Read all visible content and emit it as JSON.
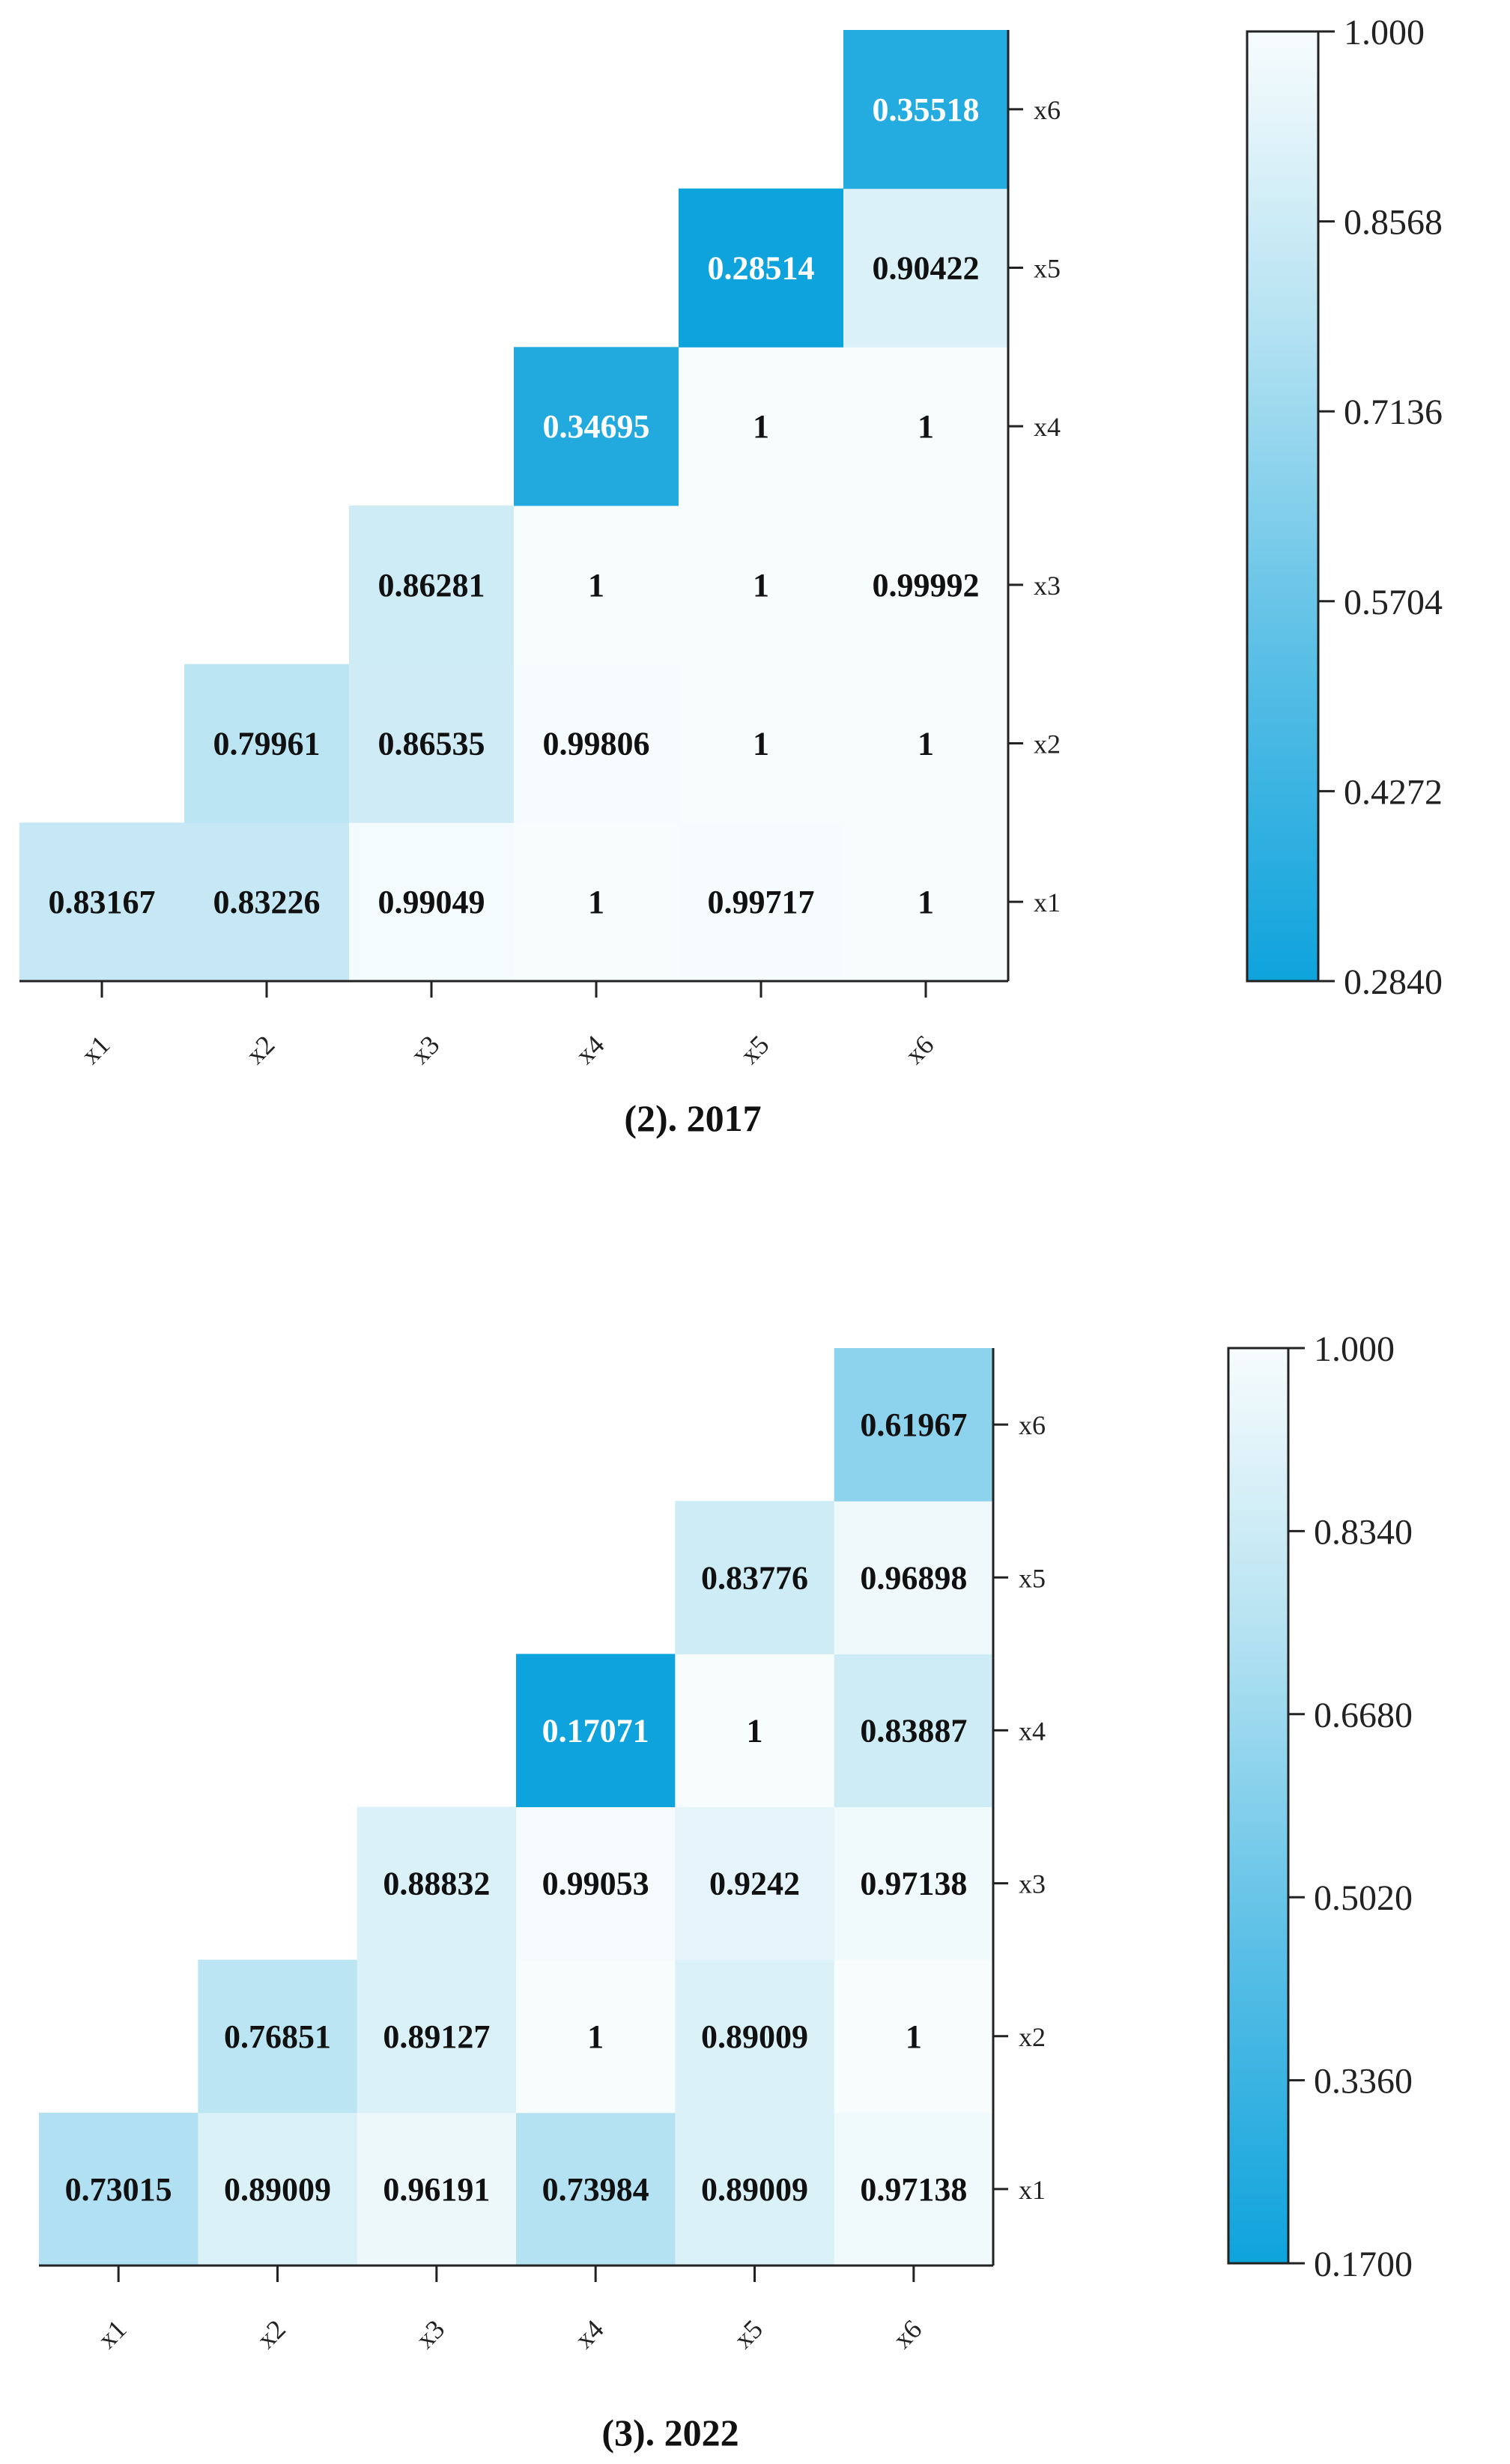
{
  "chart_data": [
    {
      "type": "heatmap",
      "title": "(2). 2017",
      "x_labels": [
        "x1",
        "x2",
        "x3",
        "x4",
        "x5",
        "x6"
      ],
      "y_labels": [
        "x1",
        "x2",
        "x3",
        "x4",
        "x5",
        "x6"
      ],
      "layout": "upper-triangle",
      "cells": [
        {
          "x": "x1",
          "y": "x1",
          "label": "0.83167",
          "value": 0.83167
        },
        {
          "x": "x2",
          "y": "x1",
          "label": "0.83226",
          "value": 0.83226
        },
        {
          "x": "x3",
          "y": "x1",
          "label": "0.99049",
          "value": 0.99049
        },
        {
          "x": "x4",
          "y": "x1",
          "label": "1",
          "value": 1
        },
        {
          "x": "x5",
          "y": "x1",
          "label": "0.99717",
          "value": 0.99717
        },
        {
          "x": "x6",
          "y": "x1",
          "label": "1",
          "value": 1
        },
        {
          "x": "x2",
          "y": "x2",
          "label": "0.79961",
          "value": 0.79961
        },
        {
          "x": "x3",
          "y": "x2",
          "label": "0.86535",
          "value": 0.86535
        },
        {
          "x": "x4",
          "y": "x2",
          "label": "0.99806",
          "value": 0.99806
        },
        {
          "x": "x5",
          "y": "x2",
          "label": "1",
          "value": 1
        },
        {
          "x": "x6",
          "y": "x2",
          "label": "1",
          "value": 1
        },
        {
          "x": "x3",
          "y": "x3",
          "label": "0.86281",
          "value": 0.86281
        },
        {
          "x": "x4",
          "y": "x3",
          "label": "1",
          "value": 1
        },
        {
          "x": "x5",
          "y": "x3",
          "label": "1",
          "value": 1
        },
        {
          "x": "x6",
          "y": "x3",
          "label": "0.99992",
          "value": 0.99992
        },
        {
          "x": "x4",
          "y": "x4",
          "label": "0.34695",
          "value": 0.34695
        },
        {
          "x": "x5",
          "y": "x4",
          "label": "1",
          "value": 1
        },
        {
          "x": "x6",
          "y": "x4",
          "label": "1",
          "value": 1
        },
        {
          "x": "x5",
          "y": "x5",
          "label": "0.28514",
          "value": 0.28514
        },
        {
          "x": "x6",
          "y": "x5",
          "label": "0.90422",
          "value": 0.90422
        },
        {
          "x": "x6",
          "y": "x6",
          "label": "0.35518",
          "value": 0.35518
        }
      ],
      "colorbar": {
        "min": 0.284,
        "max": 1.0,
        "ticks": [
          "1.000",
          "0.8568",
          "0.7136",
          "0.5704",
          "0.4272",
          "0.2840"
        ],
        "low_color": "#0ea3dc",
        "high_color": "#f7fcfd"
      }
    },
    {
      "type": "heatmap",
      "title": "(3). 2022",
      "x_labels": [
        "x1",
        "x2",
        "x3",
        "x4",
        "x5",
        "x6"
      ],
      "y_labels": [
        "x1",
        "x2",
        "x3",
        "x4",
        "x5",
        "x6"
      ],
      "layout": "upper-triangle",
      "cells": [
        {
          "x": "x1",
          "y": "x1",
          "label": "0.73015",
          "value": 0.73015
        },
        {
          "x": "x2",
          "y": "x1",
          "label": "0.89009",
          "value": 0.89009
        },
        {
          "x": "x3",
          "y": "x1",
          "label": "0.96191",
          "value": 0.96191
        },
        {
          "x": "x4",
          "y": "x1",
          "label": "0.73984",
          "value": 0.73984
        },
        {
          "x": "x5",
          "y": "x1",
          "label": "0.89009",
          "value": 0.89009
        },
        {
          "x": "x6",
          "y": "x1",
          "label": "0.97138",
          "value": 0.97138
        },
        {
          "x": "x2",
          "y": "x2",
          "label": "0.76851",
          "value": 0.76851
        },
        {
          "x": "x3",
          "y": "x2",
          "label": "0.89127",
          "value": 0.89127
        },
        {
          "x": "x4",
          "y": "x2",
          "label": "1",
          "value": 1
        },
        {
          "x": "x5",
          "y": "x2",
          "label": "0.89009",
          "value": 0.89009
        },
        {
          "x": "x6",
          "y": "x2",
          "label": "1",
          "value": 1
        },
        {
          "x": "x3",
          "y": "x3",
          "label": "0.88832",
          "value": 0.88832
        },
        {
          "x": "x4",
          "y": "x3",
          "label": "0.99053",
          "value": 0.99053
        },
        {
          "x": "x5",
          "y": "x3",
          "label": "0.9242",
          "value": 0.9242
        },
        {
          "x": "x6",
          "y": "x3",
          "label": "0.97138",
          "value": 0.97138
        },
        {
          "x": "x4",
          "y": "x4",
          "label": "0.17071",
          "value": 0.17071
        },
        {
          "x": "x5",
          "y": "x4",
          "label": "1",
          "value": 1
        },
        {
          "x": "x6",
          "y": "x4",
          "label": "0.83887",
          "value": 0.83887
        },
        {
          "x": "x5",
          "y": "x5",
          "label": "0.83776",
          "value": 0.83776
        },
        {
          "x": "x6",
          "y": "x5",
          "label": "0.96898",
          "value": 0.96898
        },
        {
          "x": "x6",
          "y": "x6",
          "label": "0.61967",
          "value": 0.61967
        }
      ],
      "colorbar": {
        "min": 0.17,
        "max": 1.0,
        "ticks": [
          "1.000",
          "0.8340",
          "0.6680",
          "0.5020",
          "0.3360",
          "0.1700"
        ],
        "low_color": "#0ea3dc",
        "high_color": "#f7fcfd"
      }
    }
  ]
}
